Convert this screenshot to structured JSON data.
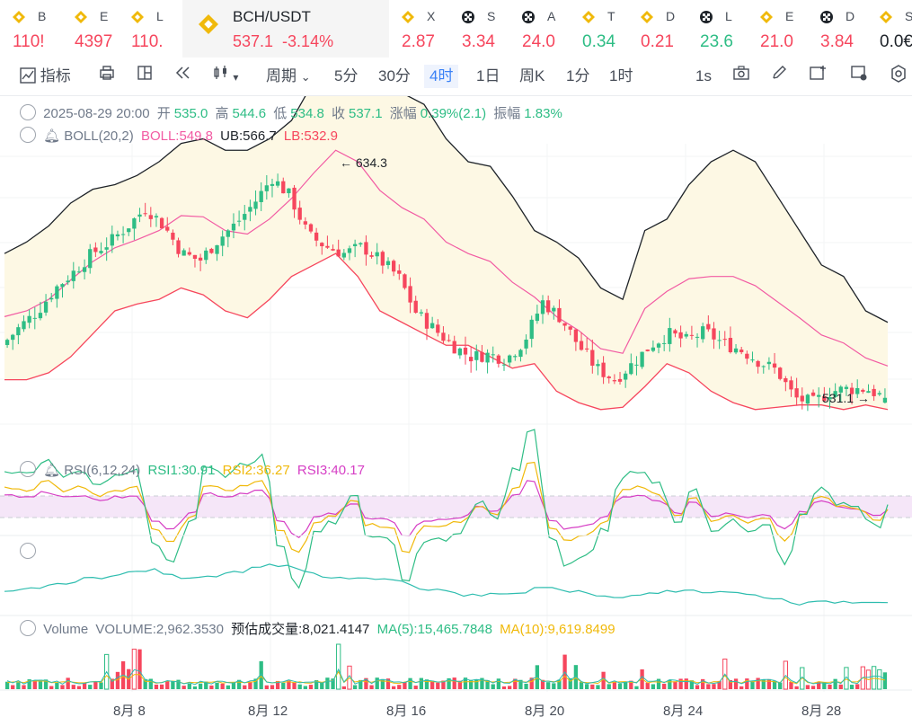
{
  "tickers": [
    {
      "symbol": "B",
      "value": "110!",
      "color": "#f6465d",
      "icon": "binance-diamond-icon"
    },
    {
      "symbol": "E",
      "value": "4397",
      "color": "#f6465d",
      "icon": "binance-diamond-icon"
    },
    {
      "symbol": "L",
      "value": "110.",
      "color": "#f6465d",
      "icon": "binance-diamond-icon"
    },
    {
      "symbol": "BCH/USDT",
      "value": "537.1",
      "change": "-3.14%",
      "color": "#f6465d",
      "icon": "binance-diamond-icon",
      "active": true
    },
    {
      "symbol": "X",
      "value": "2.87",
      "color": "#f6465d",
      "icon": "binance-diamond-icon"
    },
    {
      "symbol": "S",
      "value": "3.34",
      "color": "#f6465d",
      "icon": "okx-icon"
    },
    {
      "symbol": "A",
      "value": "24.0",
      "color": "#f6465d",
      "icon": "okx-icon"
    },
    {
      "symbol": "T",
      "value": "0.34",
      "color": "#2ebd85",
      "icon": "binance-diamond-icon"
    },
    {
      "symbol": "D",
      "value": "0.21",
      "color": "#f6465d",
      "icon": "binance-diamond-icon"
    },
    {
      "symbol": "L",
      "value": "23.6",
      "color": "#2ebd85",
      "icon": "okx-icon"
    },
    {
      "symbol": "E",
      "value": "21.0",
      "color": "#f6465d",
      "icon": "binance-diamond-icon"
    },
    {
      "symbol": "D",
      "value": "3.84",
      "color": "#f6465d",
      "icon": "okx-icon"
    },
    {
      "symbol": "S",
      "value": "0.0€",
      "color": "#1e2329",
      "icon": "binance-diamond-icon"
    }
  ],
  "toolbar": {
    "indicators": "指标",
    "period": "周期",
    "intervals": [
      "5分",
      "30分",
      "4时",
      "1日",
      "周K",
      "1分",
      "1时"
    ],
    "selected": "4时",
    "speed": "1s"
  },
  "candle_info": {
    "date": "2025-08-29 20:00",
    "open_label": "开",
    "open": "535.0",
    "high_label": "高",
    "high": "544.6",
    "low_label": "低",
    "low": "534.8",
    "close_label": "收",
    "close": "537.1",
    "change_label": "涨幅",
    "change": "0.39%(2.1)",
    "amp_label": "振幅",
    "amp": "1.83%"
  },
  "boll": {
    "name": "BOLL(20,2)",
    "mid": "BOLL:549.8",
    "ub": "UB:566.7",
    "lb": "LB:532.9"
  },
  "rsi": {
    "name": "RSI(6,12,24)",
    "rsi1": "RSI1:30.91",
    "rsi2": "RSI2:36.27",
    "rsi3": "RSI3:40.17"
  },
  "volume": {
    "name": "Volume",
    "value": "VOLUME:2,962.3530",
    "est": "预估成交量:8,021.4147",
    "ma5": "MA(5):15,465.7848",
    "ma10": "MA(10):9,619.8499"
  },
  "annotations": {
    "high": "634.3",
    "low": "531.1"
  },
  "x_labels": [
    "8月 8",
    "8月 12",
    "8月 16",
    "8月 20",
    "8月 24",
    "8月 28"
  ],
  "colors": {
    "up": "#2ebd85",
    "down": "#f6465d",
    "boll_mid": "#f25ba3",
    "boll_upper": "#1e2329",
    "boll_lower": "#f6465d",
    "band_fill": "#fdf8e4",
    "rsi1": "#2ebd85",
    "rsi2": "#f0b90b",
    "rsi3": "#d63fc5",
    "accent": "#3b82f6"
  },
  "chart_data": {
    "type": "candlestick",
    "interval": "4h",
    "x_labels": [
      "8月 8",
      "8月 12",
      "8月 16",
      "8月 20",
      "8月 24",
      "8月 28"
    ],
    "close_path": [
      560,
      568,
      575,
      585,
      592,
      600,
      605,
      612,
      620,
      612,
      600,
      597,
      606,
      613,
      622,
      633,
      625,
      608,
      603,
      600,
      603,
      597,
      590,
      574,
      567,
      560,
      555,
      556,
      554,
      562,
      579,
      572,
      560,
      550,
      545,
      552,
      560,
      565,
      562,
      566,
      561,
      558,
      553,
      549,
      537,
      535,
      540,
      541,
      541,
      537
    ],
    "boll_upper": [
      600,
      605,
      612,
      622,
      628,
      630,
      634,
      640,
      648,
      650,
      645,
      645,
      650,
      658,
      675,
      690,
      690,
      680,
      670,
      665,
      650,
      640,
      638,
      625,
      610,
      605,
      598,
      585,
      580,
      610,
      615,
      630,
      640,
      645,
      640,
      625,
      610,
      595,
      590,
      575,
      570
    ],
    "boll_lower": [
      545,
      545,
      548,
      555,
      565,
      575,
      578,
      580,
      585,
      582,
      575,
      572,
      580,
      590,
      595,
      600,
      590,
      575,
      570,
      565,
      560,
      560,
      555,
      550,
      552,
      540,
      535,
      532,
      533,
      542,
      552,
      548,
      540,
      535,
      532,
      533,
      534,
      534,
      532,
      534,
      532
    ],
    "boll_mid_last": 549.8,
    "ub_last": 566.7,
    "lb_last": 532.9,
    "last_candle": {
      "open": 535.0,
      "high": 544.6,
      "low": 534.8,
      "close": 537.1
    },
    "high_mark": 634.3,
    "low_mark": 531.1
  }
}
